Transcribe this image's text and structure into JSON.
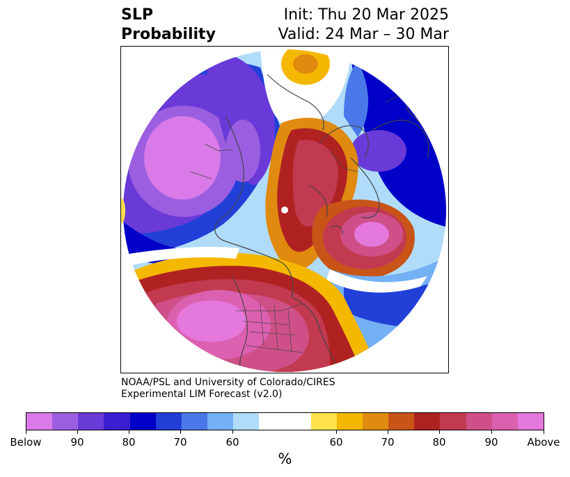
{
  "header": {
    "title_line1": "SLP",
    "title_line2": "Probability",
    "init": "Init: Thu 20 Mar 2025",
    "valid": "Valid: 24 Mar – 30 Mar"
  },
  "credit": {
    "line1": "NOAA/PSL and University of Colorado/CIRES",
    "line2": "Experimental LIM Forecast (v2.0)"
  },
  "colorbar": {
    "unit": "%",
    "colors": [
      "#d97ae8",
      "#9c5ee0",
      "#6a3ad8",
      "#3a1ed0",
      "#0000c8",
      "#2240d8",
      "#4a78e8",
      "#74b0f4",
      "#b0dcfa",
      "#ffffff",
      "#ffe14a",
      "#f5b800",
      "#e08a10",
      "#c85418",
      "#b02222",
      "#c23a50",
      "#cf5088",
      "#dc60b0",
      "#e478dc"
    ],
    "tick_labels": [
      "Below",
      "90",
      "80",
      "70",
      "60",
      "60",
      "70",
      "80",
      "90",
      "Above"
    ]
  },
  "map": {
    "projection": "north polar stereographic",
    "features": [
      "coastlines",
      "country borders",
      "state borders"
    ]
  }
}
